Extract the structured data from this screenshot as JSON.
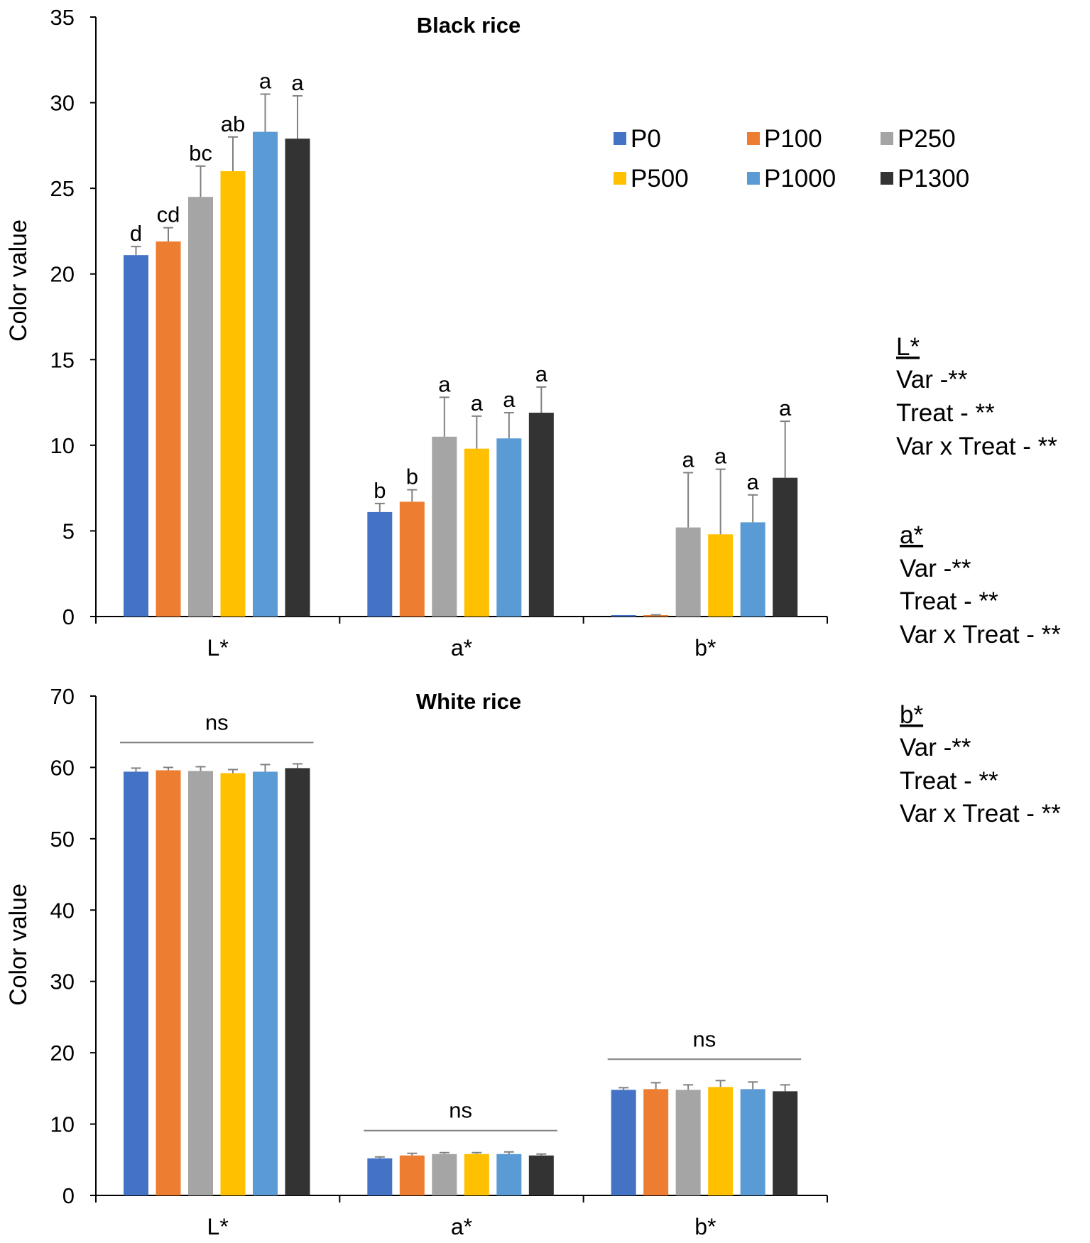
{
  "chart_data": [
    {
      "type": "bar",
      "title": "Black rice",
      "ylabel": "Color value",
      "xlabel": "",
      "ylim": [
        0,
        35
      ],
      "yticks": [
        0,
        5,
        10,
        15,
        20,
        25,
        30,
        35
      ],
      "categories": [
        "L*",
        "a*",
        "b*"
      ],
      "series": [
        {
          "name": "P0",
          "values": [
            21.1,
            6.1,
            0.0
          ],
          "errors": [
            0.5,
            0.5,
            0.0
          ]
        },
        {
          "name": "P100",
          "values": [
            21.9,
            6.7,
            0.05
          ],
          "errors": [
            0.8,
            0.7,
            0.05
          ]
        },
        {
          "name": "P250",
          "values": [
            24.5,
            10.5,
            5.2
          ],
          "errors": [
            1.8,
            2.3,
            3.2
          ]
        },
        {
          "name": "P500",
          "values": [
            26.0,
            9.8,
            4.8
          ],
          "errors": [
            2.0,
            1.9,
            3.8
          ]
        },
        {
          "name": "P1000",
          "values": [
            28.3,
            10.4,
            5.5
          ],
          "errors": [
            2.2,
            1.5,
            1.6
          ]
        },
        {
          "name": "P1300",
          "values": [
            27.9,
            11.9,
            8.1
          ],
          "errors": [
            2.5,
            1.5,
            3.3
          ]
        }
      ],
      "letters": [
        [
          "d",
          "cd",
          "bc",
          "ab",
          "a",
          "a"
        ],
        [
          "b",
          "b",
          "a",
          "a",
          "a",
          "a"
        ],
        [
          "",
          "",
          "a",
          "a",
          "a",
          "a"
        ]
      ]
    },
    {
      "type": "bar",
      "title": "White rice",
      "ylabel": "Color value",
      "xlabel": "",
      "ylim": [
        0,
        70
      ],
      "yticks": [
        0,
        10,
        20,
        30,
        40,
        50,
        60,
        70
      ],
      "categories": [
        "L*",
        "a*",
        "b*"
      ],
      "series": [
        {
          "name": "P0",
          "values": [
            59.4,
            5.2,
            14.8
          ],
          "errors": [
            0.5,
            0.2,
            0.3
          ]
        },
        {
          "name": "P100",
          "values": [
            59.6,
            5.6,
            14.9
          ],
          "errors": [
            0.4,
            0.3,
            0.9
          ]
        },
        {
          "name": "P250",
          "values": [
            59.5,
            5.8,
            14.8
          ],
          "errors": [
            0.6,
            0.2,
            0.7
          ]
        },
        {
          "name": "P500",
          "values": [
            59.2,
            5.8,
            15.2
          ],
          "errors": [
            0.5,
            0.2,
            0.9
          ]
        },
        {
          "name": "P1000",
          "values": [
            59.4,
            5.8,
            14.9
          ],
          "errors": [
            1.0,
            0.3,
            1.0
          ]
        },
        {
          "name": "P1300",
          "values": [
            59.9,
            5.6,
            14.6
          ],
          "errors": [
            0.6,
            0.2,
            0.9
          ]
        }
      ],
      "group_labels": [
        "ns",
        "ns",
        "ns"
      ]
    }
  ],
  "colors": [
    "#4472c4",
    "#ed7d31",
    "#a5a5a5",
    "#ffc000",
    "#5b9bd5",
    "#333333"
  ],
  "error_color": "#808080",
  "legend": [
    "P0",
    "P100",
    "P250",
    "P500",
    "P1000",
    "P1300"
  ],
  "stats": [
    {
      "heading": "L*",
      "lines": [
        "Var -**",
        "Treat - **",
        "Var x Treat - **"
      ]
    },
    {
      "heading": "a*",
      "lines": [
        "Var -**",
        "Treat - **",
        "Var x Treat - **"
      ]
    },
    {
      "heading": "b*",
      "lines": [
        "Var -**",
        "Treat - **",
        "Var x Treat - **"
      ]
    }
  ]
}
